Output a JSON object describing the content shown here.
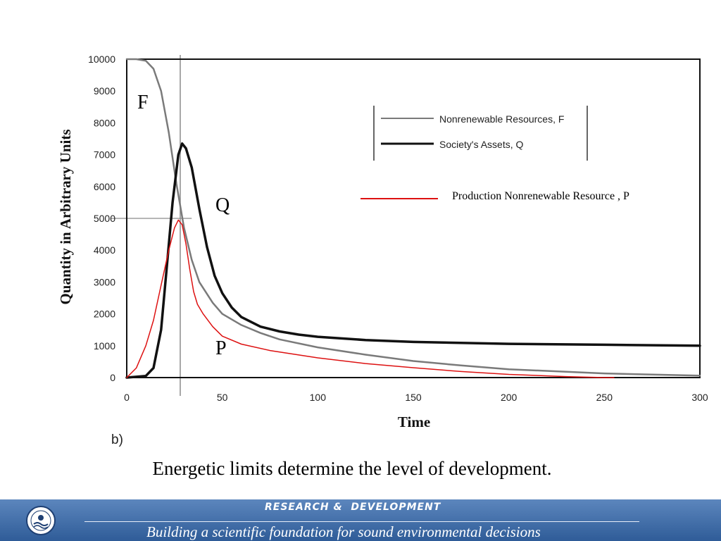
{
  "chart_data": {
    "type": "line",
    "panel_label": "b)",
    "xlabel": "Time",
    "ylabel": "Quantity in  Arbitrary Units",
    "xlim": [
      0,
      300
    ],
    "ylim": [
      0,
      10000
    ],
    "x_ticks": [
      "0",
      "50",
      "100",
      "150",
      "200",
      "250",
      "300"
    ],
    "y_ticks": [
      "0",
      "1000",
      "2000",
      "3000",
      "4000",
      "5000",
      "6000",
      "7000",
      "8000",
      "9000",
      "10000"
    ],
    "legend": [
      "Nonrenewable Resources, F",
      "Society's Assets, Q"
    ],
    "legend_extra": "Production Nonrenewable Resource , P",
    "curve_labels": [
      "F",
      "Q",
      "P"
    ],
    "colors": {
      "F": "#7a7a7a",
      "Q": "#111111",
      "P": "#dd1111"
    },
    "series": [
      {
        "name": "Nonrenewable Resources, F",
        "x": [
          0,
          5,
          10,
          14,
          18,
          22,
          26,
          30,
          34,
          38,
          45,
          50,
          60,
          70,
          80,
          100,
          125,
          150,
          175,
          200,
          250,
          300
        ],
        "y": [
          10000,
          10000,
          9950,
          9700,
          9000,
          7700,
          6100,
          4700,
          3700,
          3000,
          2350,
          2000,
          1650,
          1400,
          1200,
          950,
          720,
          520,
          380,
          260,
          130,
          60
        ]
      },
      {
        "name": "Society's Assets, Q",
        "x": [
          0,
          10,
          14,
          18,
          21,
          24,
          27,
          29,
          31,
          34,
          38,
          42,
          46,
          50,
          55,
          60,
          70,
          80,
          90,
          100,
          125,
          150,
          200,
          250,
          300
        ],
        "y": [
          0,
          50,
          300,
          1500,
          3500,
          5500,
          7000,
          7350,
          7200,
          6600,
          5300,
          4100,
          3200,
          2650,
          2200,
          1900,
          1600,
          1450,
          1350,
          1280,
          1180,
          1120,
          1060,
          1030,
          1000
        ]
      },
      {
        "name": "Production Nonrenewable Resource , P",
        "x": [
          0,
          5,
          10,
          14,
          18,
          22,
          25,
          27,
          29,
          31,
          33,
          35,
          37,
          40,
          45,
          50,
          60,
          75,
          100,
          125,
          150,
          175,
          200,
          230,
          250,
          255
        ],
        "y": [
          0,
          300,
          1000,
          1800,
          2900,
          4000,
          4700,
          4950,
          4800,
          4200,
          3400,
          2700,
          2300,
          2000,
          1600,
          1300,
          1050,
          850,
          620,
          440,
          310,
          190,
          100,
          30,
          0,
          0
        ]
      }
    ]
  },
  "caption": "Energetic limits determine the level of development.",
  "footer": {
    "title": "RESEARCH &  DEVELOPMENT",
    "subtitle": "Building a scientific foundation for sound environmental decisions",
    "seal_icon": "epa-seal-icon"
  }
}
